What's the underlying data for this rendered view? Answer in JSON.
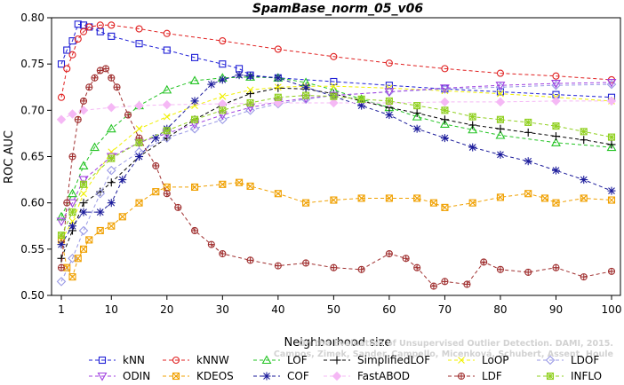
{
  "chart_data": {
    "type": "line",
    "title": "SpamBase_norm_05_v06",
    "xlabel": "Neighborhood size",
    "ylabel": "ROC AUC",
    "xlim": [
      1,
      100
    ],
    "ylim": [
      0.5,
      0.8
    ],
    "xticks": [
      "1",
      "10",
      "20",
      "30",
      "40",
      "50",
      "60",
      "70",
      "80",
      "90",
      "100"
    ],
    "yticks": [
      "0.50",
      "0.55",
      "0.60",
      "0.65",
      "0.70",
      "0.75",
      "0.80"
    ],
    "legend_position": "bottom",
    "watermark": [
      "Campos, Zimek, Sander, Campello, Micenková, Schubert, Assent, Houle",
      "On the Evaluation of Unsupervised Outlier Detection. DAMI, 2015."
    ],
    "series": [
      {
        "name": "kNN",
        "color": "#1f1fd6",
        "marker": "square",
        "dash": "4,3",
        "points": [
          [
            1,
            0.75
          ],
          [
            2,
            0.765
          ],
          [
            3,
            0.775
          ],
          [
            4,
            0.793
          ],
          [
            5,
            0.792
          ],
          [
            6,
            0.79
          ],
          [
            8,
            0.785
          ],
          [
            10,
            0.78
          ],
          [
            15,
            0.772
          ],
          [
            20,
            0.765
          ],
          [
            25,
            0.757
          ],
          [
            30,
            0.75
          ],
          [
            33,
            0.745
          ],
          [
            35,
            0.738
          ],
          [
            40,
            0.735
          ],
          [
            50,
            0.731
          ],
          [
            60,
            0.727
          ],
          [
            70,
            0.723
          ],
          [
            80,
            0.72
          ],
          [
            90,
            0.717
          ],
          [
            100,
            0.714
          ]
        ]
      },
      {
        "name": "kNNW",
        "color": "#e02020",
        "marker": "circle",
        "dash": "4,3",
        "points": [
          [
            1,
            0.714
          ],
          [
            2,
            0.745
          ],
          [
            3,
            0.76
          ],
          [
            4,
            0.777
          ],
          [
            5,
            0.785
          ],
          [
            6,
            0.79
          ],
          [
            8,
            0.792
          ],
          [
            10,
            0.792
          ],
          [
            15,
            0.788
          ],
          [
            20,
            0.783
          ],
          [
            30,
            0.775
          ],
          [
            40,
            0.766
          ],
          [
            50,
            0.758
          ],
          [
            60,
            0.751
          ],
          [
            70,
            0.745
          ],
          [
            80,
            0.74
          ],
          [
            90,
            0.737
          ],
          [
            100,
            0.733
          ]
        ]
      },
      {
        "name": "LOF",
        "color": "#22c322",
        "marker": "triangle-up",
        "dash": "4,3",
        "points": [
          [
            1,
            0.585
          ],
          [
            3,
            0.61
          ],
          [
            5,
            0.64
          ],
          [
            7,
            0.66
          ],
          [
            10,
            0.68
          ],
          [
            15,
            0.705
          ],
          [
            20,
            0.722
          ],
          [
            25,
            0.732
          ],
          [
            30,
            0.735
          ],
          [
            35,
            0.736
          ],
          [
            40,
            0.735
          ],
          [
            45,
            0.73
          ],
          [
            50,
            0.722
          ],
          [
            55,
            0.712
          ],
          [
            60,
            0.703
          ],
          [
            65,
            0.693
          ],
          [
            70,
            0.685
          ],
          [
            75,
            0.679
          ],
          [
            80,
            0.673
          ],
          [
            90,
            0.665
          ],
          [
            100,
            0.66
          ]
        ]
      },
      {
        "name": "SimplifiedLOF",
        "color": "#000000",
        "marker": "plus",
        "dash": "4,3",
        "points": [
          [
            1,
            0.54
          ],
          [
            3,
            0.57
          ],
          [
            5,
            0.6
          ],
          [
            8,
            0.612
          ],
          [
            10,
            0.622
          ],
          [
            15,
            0.65
          ],
          [
            20,
            0.67
          ],
          [
            25,
            0.69
          ],
          [
            30,
            0.706
          ],
          [
            35,
            0.718
          ],
          [
            40,
            0.724
          ],
          [
            45,
            0.723
          ],
          [
            50,
            0.718
          ],
          [
            55,
            0.71
          ],
          [
            60,
            0.703
          ],
          [
            65,
            0.697
          ],
          [
            70,
            0.69
          ],
          [
            75,
            0.684
          ],
          [
            80,
            0.68
          ],
          [
            85,
            0.676
          ],
          [
            90,
            0.672
          ],
          [
            95,
            0.668
          ],
          [
            100,
            0.663
          ]
        ]
      },
      {
        "name": "LoOP",
        "color": "#f0f000",
        "marker": "cross",
        "dash": "4,3",
        "points": [
          [
            1,
            0.56
          ],
          [
            3,
            0.58
          ],
          [
            5,
            0.61
          ],
          [
            10,
            0.655
          ],
          [
            15,
            0.68
          ],
          [
            20,
            0.693
          ],
          [
            25,
            0.705
          ],
          [
            30,
            0.715
          ],
          [
            35,
            0.722
          ],
          [
            40,
            0.725
          ],
          [
            45,
            0.726
          ],
          [
            50,
            0.726
          ],
          [
            60,
            0.724
          ],
          [
            70,
            0.721
          ],
          [
            80,
            0.718
          ],
          [
            90,
            0.714
          ],
          [
            100,
            0.71
          ]
        ]
      },
      {
        "name": "LDOF",
        "color": "#9a9ae6",
        "marker": "diamond",
        "dash": "4,3",
        "points": [
          [
            1,
            0.515
          ],
          [
            3,
            0.54
          ],
          [
            5,
            0.57
          ],
          [
            8,
            0.61
          ],
          [
            10,
            0.635
          ],
          [
            15,
            0.655
          ],
          [
            20,
            0.67
          ],
          [
            25,
            0.68
          ],
          [
            30,
            0.69
          ],
          [
            35,
            0.7
          ],
          [
            40,
            0.707
          ],
          [
            45,
            0.712
          ],
          [
            50,
            0.716
          ],
          [
            60,
            0.72
          ],
          [
            70,
            0.723
          ],
          [
            80,
            0.725
          ],
          [
            90,
            0.727
          ],
          [
            100,
            0.728
          ]
        ]
      },
      {
        "name": "ODIN",
        "color": "#a040e0",
        "marker": "triangle-down",
        "dash": "4,3",
        "points": [
          [
            1,
            0.58
          ],
          [
            3,
            0.6
          ],
          [
            5,
            0.625
          ],
          [
            10,
            0.65
          ],
          [
            15,
            0.665
          ],
          [
            20,
            0.675
          ],
          [
            25,
            0.685
          ],
          [
            30,
            0.695
          ],
          [
            35,
            0.703
          ],
          [
            40,
            0.709
          ],
          [
            45,
            0.713
          ],
          [
            50,
            0.716
          ],
          [
            60,
            0.72
          ],
          [
            70,
            0.724
          ],
          [
            80,
            0.727
          ],
          [
            90,
            0.729
          ],
          [
            100,
            0.73
          ]
        ]
      },
      {
        "name": "KDEOS",
        "color": "#f0a000",
        "marker": "square-x",
        "dash": "4,3",
        "points": [
          [
            1,
            0.56
          ],
          [
            2,
            0.53
          ],
          [
            3,
            0.52
          ],
          [
            4,
            0.54
          ],
          [
            5,
            0.55
          ],
          [
            6,
            0.56
          ],
          [
            8,
            0.57
          ],
          [
            10,
            0.575
          ],
          [
            12,
            0.585
          ],
          [
            15,
            0.6
          ],
          [
            18,
            0.612
          ],
          [
            20,
            0.617
          ],
          [
            25,
            0.617
          ],
          [
            30,
            0.62
          ],
          [
            33,
            0.622
          ],
          [
            35,
            0.618
          ],
          [
            40,
            0.61
          ],
          [
            45,
            0.6
          ],
          [
            50,
            0.603
          ],
          [
            55,
            0.605
          ],
          [
            60,
            0.605
          ],
          [
            65,
            0.605
          ],
          [
            68,
            0.6
          ],
          [
            70,
            0.595
          ],
          [
            75,
            0.6
          ],
          [
            80,
            0.606
          ],
          [
            85,
            0.61
          ],
          [
            88,
            0.605
          ],
          [
            90,
            0.6
          ],
          [
            95,
            0.605
          ],
          [
            100,
            0.603
          ]
        ]
      },
      {
        "name": "COF",
        "color": "#1a1a9a",
        "marker": "asterisk",
        "dash": "4,3",
        "points": [
          [
            1,
            0.555
          ],
          [
            3,
            0.575
          ],
          [
            5,
            0.59
          ],
          [
            8,
            0.59
          ],
          [
            10,
            0.6
          ],
          [
            12,
            0.625
          ],
          [
            15,
            0.65
          ],
          [
            18,
            0.67
          ],
          [
            20,
            0.68
          ],
          [
            25,
            0.71
          ],
          [
            28,
            0.728
          ],
          [
            30,
            0.733
          ],
          [
            33,
            0.738
          ],
          [
            35,
            0.737
          ],
          [
            40,
            0.735
          ],
          [
            45,
            0.725
          ],
          [
            50,
            0.715
          ],
          [
            55,
            0.705
          ],
          [
            60,
            0.695
          ],
          [
            65,
            0.68
          ],
          [
            70,
            0.67
          ],
          [
            75,
            0.66
          ],
          [
            80,
            0.652
          ],
          [
            85,
            0.645
          ],
          [
            90,
            0.635
          ],
          [
            95,
            0.625
          ],
          [
            100,
            0.613
          ]
        ]
      },
      {
        "name": "FastABOD",
        "color": "#f5b8f5",
        "marker": "diamond-filled",
        "dash": "4,3",
        "points": [
          [
            1,
            0.69
          ],
          [
            3,
            0.696
          ],
          [
            5,
            0.7
          ],
          [
            10,
            0.703
          ],
          [
            15,
            0.705
          ],
          [
            20,
            0.706
          ],
          [
            30,
            0.707
          ],
          [
            40,
            0.708
          ],
          [
            50,
            0.708
          ],
          [
            60,
            0.708
          ],
          [
            70,
            0.709
          ],
          [
            80,
            0.709
          ],
          [
            90,
            0.71
          ],
          [
            100,
            0.71
          ]
        ]
      },
      {
        "name": "LDF",
        "color": "#a03030",
        "marker": "circle-plus",
        "dash": "4,3",
        "points": [
          [
            1,
            0.53
          ],
          [
            2,
            0.6
          ],
          [
            3,
            0.65
          ],
          [
            4,
            0.69
          ],
          [
            5,
            0.71
          ],
          [
            6,
            0.725
          ],
          [
            7,
            0.735
          ],
          [
            8,
            0.743
          ],
          [
            9,
            0.745
          ],
          [
            10,
            0.735
          ],
          [
            11,
            0.725
          ],
          [
            13,
            0.695
          ],
          [
            15,
            0.67
          ],
          [
            18,
            0.64
          ],
          [
            20,
            0.61
          ],
          [
            22,
            0.595
          ],
          [
            25,
            0.57
          ],
          [
            28,
            0.555
          ],
          [
            30,
            0.545
          ],
          [
            35,
            0.538
          ],
          [
            40,
            0.532
          ],
          [
            45,
            0.535
          ],
          [
            50,
            0.53
          ],
          [
            55,
            0.528
          ],
          [
            60,
            0.545
          ],
          [
            63,
            0.54
          ],
          [
            65,
            0.53
          ],
          [
            68,
            0.51
          ],
          [
            70,
            0.515
          ],
          [
            74,
            0.512
          ],
          [
            77,
            0.536
          ],
          [
            80,
            0.528
          ],
          [
            85,
            0.525
          ],
          [
            90,
            0.53
          ],
          [
            95,
            0.52
          ],
          [
            100,
            0.526
          ]
        ]
      },
      {
        "name": "INFLO",
        "color": "#90d020",
        "marker": "square-cross",
        "dash": "4,3",
        "points": [
          [
            1,
            0.565
          ],
          [
            3,
            0.59
          ],
          [
            5,
            0.62
          ],
          [
            10,
            0.648
          ],
          [
            15,
            0.665
          ],
          [
            20,
            0.678
          ],
          [
            25,
            0.69
          ],
          [
            30,
            0.7
          ],
          [
            35,
            0.708
          ],
          [
            40,
            0.714
          ],
          [
            45,
            0.716
          ],
          [
            50,
            0.715
          ],
          [
            55,
            0.712
          ],
          [
            60,
            0.71
          ],
          [
            65,
            0.705
          ],
          [
            70,
            0.7
          ],
          [
            75,
            0.693
          ],
          [
            80,
            0.69
          ],
          [
            85,
            0.687
          ],
          [
            90,
            0.683
          ],
          [
            95,
            0.677
          ],
          [
            100,
            0.671
          ]
        ]
      }
    ]
  }
}
